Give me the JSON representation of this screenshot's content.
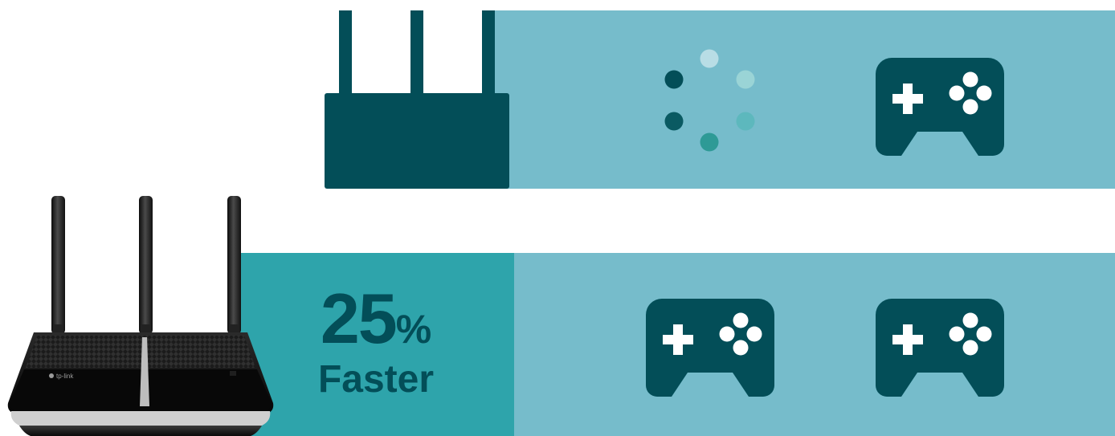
{
  "stat": {
    "number": "25",
    "unit": "%",
    "label": "Faster"
  },
  "photo": {
    "logo_text": "tp-link"
  },
  "colors": {
    "dark_teal": "#034e58",
    "light_band": "#76bccb",
    "stat_band": "#2ea4ab",
    "spinner_dots": [
      "#b8dde5",
      "#9ad4d6",
      "#5db8bd",
      "#2e9a96",
      "#0a5a62",
      "#034e58"
    ]
  },
  "icons": {
    "router": "router-icon",
    "loading": "loading-spinner-icon",
    "gamepad": "gamepad-icon"
  }
}
